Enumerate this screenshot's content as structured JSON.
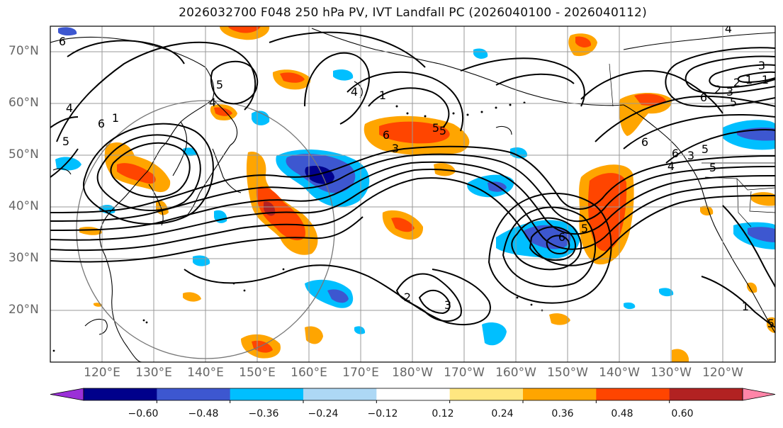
{
  "title": "2026032700 F048 250 hPa PV, IVT Landfall PC (2026040100 - 2026040112)",
  "lat_labels": [
    "70°N",
    "60°N",
    "50°N",
    "40°N",
    "30°N",
    "20°N"
  ],
  "lon_labels": [
    "120°E",
    "130°E",
    "140°E",
    "150°E",
    "160°E",
    "170°E",
    "180°W",
    "170°W",
    "160°W",
    "150°W",
    "140°W",
    "130°W",
    "120°W"
  ],
  "colorbar": {
    "tick_labels": [
      "−0.60",
      "−0.48",
      "−0.36",
      "−0.24",
      "−0.12",
      "0.12",
      "0.24",
      "0.36",
      "0.48",
      "0.60"
    ],
    "bins": [
      {
        "color": "#9b30d8",
        "range": "< -0.60"
      },
      {
        "color": "#00008b",
        "range": "-0.60 to -0.48"
      },
      {
        "color": "#3d57d0",
        "range": "-0.48 to -0.36"
      },
      {
        "color": "#00bfff",
        "range": "-0.36 to -0.24"
      },
      {
        "color": "#add8f5",
        "range": "-0.24 to -0.12"
      },
      {
        "color": "#ffffff",
        "range": "-0.12 to 0.12"
      },
      {
        "color": "#ffe680",
        "range": "0.12 to 0.24"
      },
      {
        "color": "#ffa500",
        "range": "0.24 to 0.36"
      },
      {
        "color": "#ff4500",
        "range": "0.36 to 0.48"
      },
      {
        "color": "#b22222",
        "range": "0.48 to 0.60"
      },
      {
        "color": "#ff85a8",
        "range": "> 0.60"
      }
    ]
  },
  "contour_labels": [
    "6",
    "1",
    "4",
    "5",
    "4",
    "6",
    "5",
    "6",
    "5",
    "3",
    "4",
    "1",
    "1",
    "6",
    "5",
    "3",
    "6",
    "2",
    "3",
    "2",
    "5",
    "5",
    "6",
    "4",
    "5",
    "4",
    "5",
    "3",
    "2",
    "6",
    "1",
    "3",
    "1",
    "5"
  ]
}
